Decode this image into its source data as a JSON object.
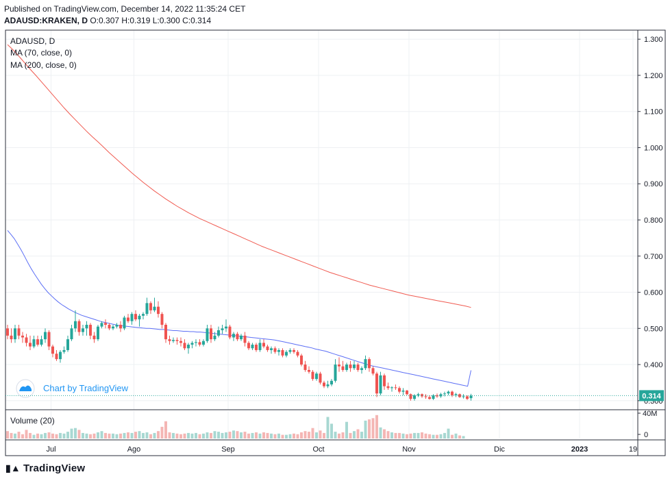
{
  "header": {
    "published": "Published on TradingView.com, December 14, 2022 11:35:24 CET",
    "symbol": "ADAUSD:KRAKEN, D",
    "ohlc": "O:0.307 H:0.319 L:0.300 C:0.314"
  },
  "legend": {
    "symbol_label": "ADAUSD, D",
    "ma70_label": "MA (70, close, 0)",
    "ma200_label": "MA (200, close, 0)",
    "volume_label": "Volume (20)"
  },
  "watermark": {
    "text": "Chart by TradingView"
  },
  "footer": {
    "brand": "TradingView"
  },
  "colors": {
    "up": "#26a69a",
    "down": "#ef5350",
    "ma70": "#5b6ef5",
    "ma200": "#f05a50",
    "last_price_label": "#26a69a",
    "grid": "#eef0f3"
  },
  "chart_data": {
    "type": "candlestick",
    "price_axis": {
      "range": [
        0.275,
        1.325
      ],
      "ticks": [
        "1.300",
        "1.200",
        "1.100",
        "1.000",
        "0.900",
        "0.800",
        "0.700",
        "0.600",
        "0.500",
        "0.400",
        "0.300"
      ]
    },
    "time_axis": {
      "labels": [
        "Jul",
        "Ago",
        "Sep",
        "Oct",
        "Nov",
        "Dic",
        "2023",
        "19"
      ]
    },
    "last_price": "0.314",
    "volume_axis": {
      "ticks": [
        "40M",
        "0"
      ]
    },
    "candles": [
      {
        "o": 0.5,
        "h": 0.51,
        "l": 0.47,
        "c": 0.48
      },
      {
        "o": 0.48,
        "h": 0.5,
        "l": 0.46,
        "c": 0.47
      },
      {
        "o": 0.47,
        "h": 0.51,
        "l": 0.46,
        "c": 0.5
      },
      {
        "o": 0.5,
        "h": 0.51,
        "l": 0.47,
        "c": 0.48
      },
      {
        "o": 0.48,
        "h": 0.49,
        "l": 0.46,
        "c": 0.475
      },
      {
        "o": 0.475,
        "h": 0.485,
        "l": 0.45,
        "c": 0.46
      },
      {
        "o": 0.46,
        "h": 0.48,
        "l": 0.44,
        "c": 0.45
      },
      {
        "o": 0.45,
        "h": 0.48,
        "l": 0.445,
        "c": 0.47
      },
      {
        "o": 0.47,
        "h": 0.48,
        "l": 0.45,
        "c": 0.455
      },
      {
        "o": 0.455,
        "h": 0.48,
        "l": 0.45,
        "c": 0.47
      },
      {
        "o": 0.47,
        "h": 0.5,
        "l": 0.46,
        "c": 0.49
      },
      {
        "o": 0.49,
        "h": 0.495,
        "l": 0.44,
        "c": 0.45
      },
      {
        "o": 0.45,
        "h": 0.455,
        "l": 0.42,
        "c": 0.43
      },
      {
        "o": 0.43,
        "h": 0.44,
        "l": 0.41,
        "c": 0.415
      },
      {
        "o": 0.415,
        "h": 0.44,
        "l": 0.405,
        "c": 0.435
      },
      {
        "o": 0.435,
        "h": 0.45,
        "l": 0.43,
        "c": 0.44
      },
      {
        "o": 0.44,
        "h": 0.48,
        "l": 0.435,
        "c": 0.47
      },
      {
        "o": 0.47,
        "h": 0.51,
        "l": 0.465,
        "c": 0.5
      },
      {
        "o": 0.5,
        "h": 0.55,
        "l": 0.49,
        "c": 0.52
      },
      {
        "o": 0.52,
        "h": 0.525,
        "l": 0.48,
        "c": 0.49
      },
      {
        "o": 0.49,
        "h": 0.51,
        "l": 0.48,
        "c": 0.5
      },
      {
        "o": 0.5,
        "h": 0.52,
        "l": 0.48,
        "c": 0.51
      },
      {
        "o": 0.51,
        "h": 0.515,
        "l": 0.47,
        "c": 0.48
      },
      {
        "o": 0.48,
        "h": 0.49,
        "l": 0.46,
        "c": 0.47
      },
      {
        "o": 0.47,
        "h": 0.51,
        "l": 0.465,
        "c": 0.505
      },
      {
        "o": 0.505,
        "h": 0.52,
        "l": 0.5,
        "c": 0.515
      },
      {
        "o": 0.515,
        "h": 0.525,
        "l": 0.5,
        "c": 0.51
      },
      {
        "o": 0.51,
        "h": 0.515,
        "l": 0.495,
        "c": 0.5
      },
      {
        "o": 0.5,
        "h": 0.51,
        "l": 0.495,
        "c": 0.505
      },
      {
        "o": 0.505,
        "h": 0.515,
        "l": 0.5,
        "c": 0.51
      },
      {
        "o": 0.51,
        "h": 0.52,
        "l": 0.49,
        "c": 0.5
      },
      {
        "o": 0.5,
        "h": 0.535,
        "l": 0.495,
        "c": 0.53
      },
      {
        "o": 0.53,
        "h": 0.54,
        "l": 0.515,
        "c": 0.52
      },
      {
        "o": 0.52,
        "h": 0.545,
        "l": 0.51,
        "c": 0.54
      },
      {
        "o": 0.54,
        "h": 0.55,
        "l": 0.52,
        "c": 0.525
      },
      {
        "o": 0.525,
        "h": 0.54,
        "l": 0.505,
        "c": 0.535
      },
      {
        "o": 0.535,
        "h": 0.545,
        "l": 0.525,
        "c": 0.54
      },
      {
        "o": 0.54,
        "h": 0.585,
        "l": 0.535,
        "c": 0.57
      },
      {
        "o": 0.57,
        "h": 0.575,
        "l": 0.54,
        "c": 0.55
      },
      {
        "o": 0.55,
        "h": 0.585,
        "l": 0.545,
        "c": 0.56
      },
      {
        "o": 0.56,
        "h": 0.575,
        "l": 0.53,
        "c": 0.54
      },
      {
        "o": 0.54,
        "h": 0.545,
        "l": 0.5,
        "c": 0.51
      },
      {
        "o": 0.51,
        "h": 0.515,
        "l": 0.46,
        "c": 0.47
      },
      {
        "o": 0.47,
        "h": 0.48,
        "l": 0.455,
        "c": 0.465
      },
      {
        "o": 0.465,
        "h": 0.475,
        "l": 0.46,
        "c": 0.468
      },
      {
        "o": 0.468,
        "h": 0.475,
        "l": 0.455,
        "c": 0.465
      },
      {
        "o": 0.465,
        "h": 0.475,
        "l": 0.45,
        "c": 0.46
      },
      {
        "o": 0.46,
        "h": 0.47,
        "l": 0.44,
        "c": 0.445
      },
      {
        "o": 0.445,
        "h": 0.46,
        "l": 0.43,
        "c": 0.455
      },
      {
        "o": 0.455,
        "h": 0.465,
        "l": 0.445,
        "c": 0.46
      },
      {
        "o": 0.46,
        "h": 0.47,
        "l": 0.45,
        "c": 0.462
      },
      {
        "o": 0.462,
        "h": 0.47,
        "l": 0.45,
        "c": 0.455
      },
      {
        "o": 0.455,
        "h": 0.47,
        "l": 0.45,
        "c": 0.465
      },
      {
        "o": 0.465,
        "h": 0.51,
        "l": 0.46,
        "c": 0.5
      },
      {
        "o": 0.5,
        "h": 0.51,
        "l": 0.46,
        "c": 0.47
      },
      {
        "o": 0.47,
        "h": 0.49,
        "l": 0.465,
        "c": 0.48
      },
      {
        "o": 0.48,
        "h": 0.505,
        "l": 0.475,
        "c": 0.495
      },
      {
        "o": 0.495,
        "h": 0.51,
        "l": 0.485,
        "c": 0.5
      },
      {
        "o": 0.5,
        "h": 0.525,
        "l": 0.49,
        "c": 0.505
      },
      {
        "o": 0.505,
        "h": 0.51,
        "l": 0.47,
        "c": 0.475
      },
      {
        "o": 0.475,
        "h": 0.49,
        "l": 0.465,
        "c": 0.485
      },
      {
        "o": 0.485,
        "h": 0.49,
        "l": 0.465,
        "c": 0.47
      },
      {
        "o": 0.47,
        "h": 0.485,
        "l": 0.465,
        "c": 0.48
      },
      {
        "o": 0.48,
        "h": 0.49,
        "l": 0.45,
        "c": 0.46
      },
      {
        "o": 0.46,
        "h": 0.465,
        "l": 0.44,
        "c": 0.445
      },
      {
        "o": 0.445,
        "h": 0.46,
        "l": 0.44,
        "c": 0.455
      },
      {
        "o": 0.455,
        "h": 0.46,
        "l": 0.435,
        "c": 0.44
      },
      {
        "o": 0.44,
        "h": 0.47,
        "l": 0.435,
        "c": 0.46
      },
      {
        "o": 0.46,
        "h": 0.47,
        "l": 0.445,
        "c": 0.45
      },
      {
        "o": 0.45,
        "h": 0.455,
        "l": 0.435,
        "c": 0.44
      },
      {
        "o": 0.44,
        "h": 0.45,
        "l": 0.43,
        "c": 0.445
      },
      {
        "o": 0.445,
        "h": 0.45,
        "l": 0.43,
        "c": 0.435
      },
      {
        "o": 0.435,
        "h": 0.445,
        "l": 0.425,
        "c": 0.44
      },
      {
        "o": 0.44,
        "h": 0.445,
        "l": 0.42,
        "c": 0.425
      },
      {
        "o": 0.425,
        "h": 0.44,
        "l": 0.42,
        "c": 0.435
      },
      {
        "o": 0.435,
        "h": 0.445,
        "l": 0.43,
        "c": 0.44
      },
      {
        "o": 0.44,
        "h": 0.445,
        "l": 0.43,
        "c": 0.435
      },
      {
        "o": 0.435,
        "h": 0.44,
        "l": 0.42,
        "c": 0.425
      },
      {
        "o": 0.425,
        "h": 0.43,
        "l": 0.395,
        "c": 0.4
      },
      {
        "o": 0.4,
        "h": 0.41,
        "l": 0.38,
        "c": 0.385
      },
      {
        "o": 0.385,
        "h": 0.395,
        "l": 0.375,
        "c": 0.38
      },
      {
        "o": 0.38,
        "h": 0.385,
        "l": 0.355,
        "c": 0.36
      },
      {
        "o": 0.36,
        "h": 0.38,
        "l": 0.355,
        "c": 0.375
      },
      {
        "o": 0.375,
        "h": 0.38,
        "l": 0.345,
        "c": 0.35
      },
      {
        "o": 0.35,
        "h": 0.355,
        "l": 0.335,
        "c": 0.34
      },
      {
        "o": 0.34,
        "h": 0.355,
        "l": 0.335,
        "c": 0.345
      },
      {
        "o": 0.345,
        "h": 0.36,
        "l": 0.34,
        "c": 0.355
      },
      {
        "o": 0.355,
        "h": 0.415,
        "l": 0.35,
        "c": 0.4
      },
      {
        "o": 0.4,
        "h": 0.42,
        "l": 0.38,
        "c": 0.395
      },
      {
        "o": 0.395,
        "h": 0.41,
        "l": 0.38,
        "c": 0.385
      },
      {
        "o": 0.385,
        "h": 0.405,
        "l": 0.38,
        "c": 0.4
      },
      {
        "o": 0.4,
        "h": 0.41,
        "l": 0.38,
        "c": 0.39
      },
      {
        "o": 0.39,
        "h": 0.41,
        "l": 0.385,
        "c": 0.4
      },
      {
        "o": 0.4,
        "h": 0.405,
        "l": 0.38,
        "c": 0.385
      },
      {
        "o": 0.385,
        "h": 0.395,
        "l": 0.375,
        "c": 0.39
      },
      {
        "o": 0.39,
        "h": 0.425,
        "l": 0.385,
        "c": 0.415
      },
      {
        "o": 0.415,
        "h": 0.42,
        "l": 0.38,
        "c": 0.39
      },
      {
        "o": 0.39,
        "h": 0.395,
        "l": 0.37,
        "c": 0.375
      },
      {
        "o": 0.375,
        "h": 0.38,
        "l": 0.31,
        "c": 0.32
      },
      {
        "o": 0.32,
        "h": 0.38,
        "l": 0.315,
        "c": 0.37
      },
      {
        "o": 0.37,
        "h": 0.375,
        "l": 0.33,
        "c": 0.34
      },
      {
        "o": 0.34,
        "h": 0.35,
        "l": 0.33,
        "c": 0.335
      },
      {
        "o": 0.335,
        "h": 0.34,
        "l": 0.325,
        "c": 0.337
      },
      {
        "o": 0.337,
        "h": 0.345,
        "l": 0.33,
        "c": 0.335
      },
      {
        "o": 0.335,
        "h": 0.34,
        "l": 0.32,
        "c": 0.325
      },
      {
        "o": 0.325,
        "h": 0.335,
        "l": 0.315,
        "c": 0.328
      },
      {
        "o": 0.328,
        "h": 0.33,
        "l": 0.315,
        "c": 0.318
      },
      {
        "o": 0.318,
        "h": 0.32,
        "l": 0.3,
        "c": 0.305
      },
      {
        "o": 0.305,
        "h": 0.318,
        "l": 0.3,
        "c": 0.315
      },
      {
        "o": 0.315,
        "h": 0.322,
        "l": 0.31,
        "c": 0.318
      },
      {
        "o": 0.318,
        "h": 0.32,
        "l": 0.308,
        "c": 0.312
      },
      {
        "o": 0.312,
        "h": 0.318,
        "l": 0.305,
        "c": 0.31
      },
      {
        "o": 0.31,
        "h": 0.315,
        "l": 0.303,
        "c": 0.305
      },
      {
        "o": 0.305,
        "h": 0.318,
        "l": 0.302,
        "c": 0.315
      },
      {
        "o": 0.315,
        "h": 0.32,
        "l": 0.308,
        "c": 0.312
      },
      {
        "o": 0.312,
        "h": 0.322,
        "l": 0.308,
        "c": 0.318
      },
      {
        "o": 0.318,
        "h": 0.325,
        "l": 0.312,
        "c": 0.32
      },
      {
        "o": 0.32,
        "h": 0.328,
        "l": 0.315,
        "c": 0.325
      },
      {
        "o": 0.325,
        "h": 0.328,
        "l": 0.31,
        "c": 0.315
      },
      {
        "o": 0.315,
        "h": 0.322,
        "l": 0.31,
        "c": 0.318
      },
      {
        "o": 0.318,
        "h": 0.32,
        "l": 0.308,
        "c": 0.31
      },
      {
        "o": 0.31,
        "h": 0.318,
        "l": 0.306,
        "c": 0.312
      },
      {
        "o": 0.312,
        "h": 0.315,
        "l": 0.302,
        "c": 0.305
      },
      {
        "o": 0.307,
        "h": 0.319,
        "l": 0.3,
        "c": 0.314
      }
    ],
    "volume": [
      12,
      9,
      8,
      11,
      7,
      14,
      9,
      6,
      8,
      7,
      9,
      10,
      8,
      7,
      9,
      8,
      11,
      16,
      17,
      14,
      9,
      8,
      7,
      8,
      10,
      12,
      9,
      8,
      8,
      7,
      8,
      9,
      10,
      9,
      11,
      12,
      9,
      10,
      7,
      9,
      12,
      19,
      28,
      10,
      9,
      8,
      7,
      8,
      9,
      8,
      9,
      7,
      8,
      10,
      9,
      12,
      11,
      9,
      10,
      11,
      13,
      12,
      10,
      11,
      8,
      9,
      10,
      8,
      10,
      9,
      8,
      7,
      8,
      6,
      6,
      7,
      8,
      7,
      10,
      12,
      11,
      17,
      10,
      13,
      9,
      35,
      24,
      11,
      8,
      10,
      27,
      9,
      12,
      15,
      11,
      29,
      31,
      33,
      38,
      18,
      15,
      12,
      10,
      9,
      9,
      8,
      7,
      8,
      9,
      9,
      10,
      8,
      7,
      6,
      6,
      7,
      9,
      16,
      6,
      8,
      5,
      4
    ],
    "ma70": [
      0.771,
      0.76,
      0.748,
      0.733,
      0.717,
      0.7,
      0.682,
      0.665,
      0.65,
      0.636,
      0.622,
      0.61,
      0.599,
      0.59,
      0.581,
      0.573,
      0.566,
      0.56,
      0.554,
      0.549,
      0.544,
      0.54,
      0.536,
      0.533,
      0.53,
      0.527,
      0.524,
      0.521,
      0.518,
      0.516,
      0.514,
      0.512,
      0.51,
      0.508,
      0.507,
      0.506,
      0.505,
      0.504,
      0.503,
      0.502,
      0.501,
      0.5,
      0.5,
      0.499,
      0.498,
      0.497,
      0.497,
      0.496,
      0.495,
      0.494,
      0.494,
      0.493,
      0.492,
      0.492,
      0.491,
      0.491,
      0.49,
      0.49,
      0.489,
      0.488,
      0.487,
      0.486,
      0.485,
      0.484,
      0.483,
      0.482,
      0.481,
      0.48,
      0.479,
      0.478,
      0.477,
      0.476,
      0.475,
      0.474,
      0.473,
      0.472,
      0.471,
      0.47,
      0.469,
      0.468,
      0.466,
      0.464,
      0.462,
      0.46,
      0.458,
      0.456,
      0.454,
      0.452,
      0.45,
      0.448,
      0.446,
      0.443,
      0.441,
      0.439,
      0.437,
      0.434,
      0.431,
      0.428,
      0.425,
      0.422,
      0.419,
      0.416,
      0.413,
      0.41,
      0.407,
      0.404,
      0.401,
      0.398,
      0.396,
      0.394,
      0.392,
      0.39,
      0.388,
      0.386,
      0.384,
      0.382,
      0.38,
      0.378,
      0.376,
      0.374,
      0.372,
      0.37,
      0.368,
      0.366,
      0.364,
      0.362,
      0.36,
      0.358,
      0.356,
      0.354,
      0.352,
      0.35,
      0.348,
      0.346,
      0.344,
      0.342,
      0.34,
      0.384
    ],
    "ma200": [
      1.285,
      1.27,
      1.253,
      1.235,
      1.217,
      1.2,
      1.182,
      1.164,
      1.146,
      1.128,
      1.11,
      1.093,
      1.077,
      1.061,
      1.045,
      1.03,
      1.016,
      1.001,
      0.986,
      0.972,
      0.958,
      0.944,
      0.93,
      0.917,
      0.904,
      0.892,
      0.88,
      0.869,
      0.858,
      0.848,
      0.838,
      0.829,
      0.82,
      0.812,
      0.804,
      0.797,
      0.79,
      0.783,
      0.776,
      0.769,
      0.762,
      0.755,
      0.748,
      0.741,
      0.734,
      0.727,
      0.721,
      0.715,
      0.709,
      0.703,
      0.697,
      0.691,
      0.685,
      0.679,
      0.673,
      0.667,
      0.661,
      0.655,
      0.65,
      0.645,
      0.64,
      0.635,
      0.63,
      0.625,
      0.62,
      0.616,
      0.612,
      0.608,
      0.604,
      0.6,
      0.596,
      0.592,
      0.589,
      0.586,
      0.583,
      0.58,
      0.577,
      0.574,
      0.571,
      0.568,
      0.565,
      0.562,
      0.558
    ]
  }
}
